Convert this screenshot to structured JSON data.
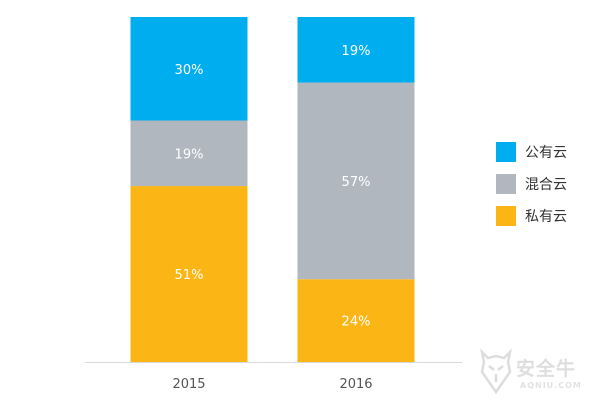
{
  "chart_data": {
    "type": "bar",
    "stacked": true,
    "categories": [
      "2015",
      "2016"
    ],
    "series": [
      {
        "name": "私有云",
        "values": [
          51,
          24
        ],
        "labels": [
          "51%",
          "24%"
        ],
        "color": "#fbb616"
      },
      {
        "name": "混合云",
        "values": [
          19,
          57
        ],
        "labels": [
          "19%",
          "57%"
        ],
        "color": "#b0b7bf"
      },
      {
        "name": "公有云",
        "values": [
          30,
          19
        ],
        "labels": [
          "30%",
          "19%"
        ],
        "color": "#00aeef"
      }
    ],
    "ylim": [
      0,
      100
    ],
    "grid": false,
    "legend_position": "right"
  },
  "legend": [
    {
      "label": "公有云",
      "color": "#00aeef"
    },
    {
      "label": "混合云",
      "color": "#b0b7bf"
    },
    {
      "label": "私有云",
      "color": "#fbb616"
    }
  ],
  "watermark": {
    "name": "安全牛",
    "domain": "AQNIU.COM",
    "icon": "bull-shield-icon"
  },
  "colors": {
    "axis": "#d9d9d9"
  }
}
